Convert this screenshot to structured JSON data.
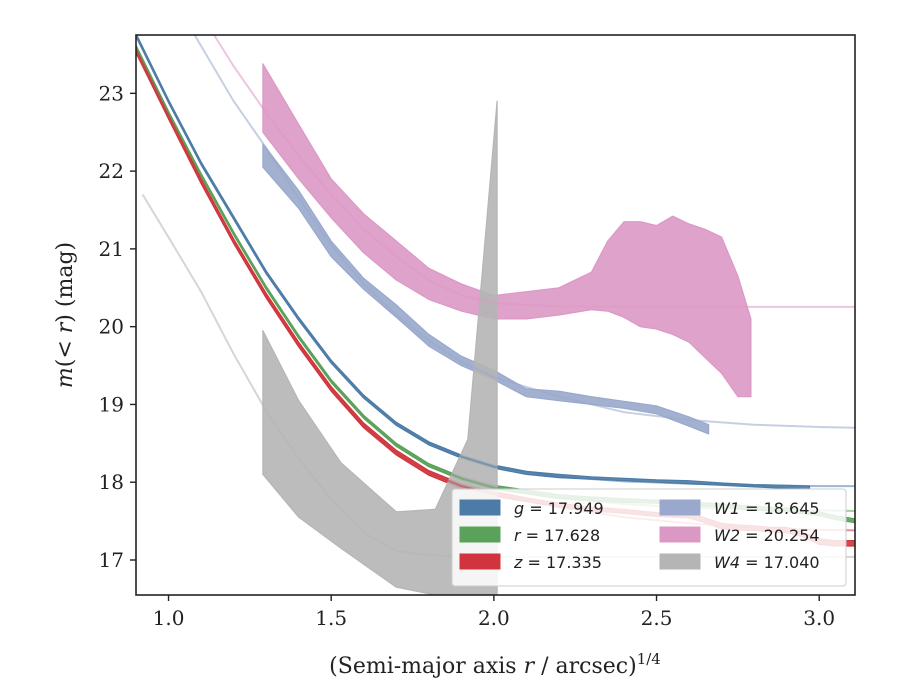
{
  "chart_data": {
    "type": "line",
    "title": "",
    "xlabel": "(Semi-major axis r / arcsec)^{1/4}",
    "xlabel_parts": {
      "prefix": "(Semi-major axis ",
      "var": "r",
      "middle": " / arcsec)",
      "sup": "1/4"
    },
    "ylabel": "m(< r) (mag)",
    "ylabel_parts": {
      "m": "m",
      "open": "(",
      "lt": "< ",
      "r": "r",
      "close": ")",
      "unit": " (mag)"
    },
    "xlim": [
      0.9,
      3.11
    ],
    "ylim": [
      23.75,
      16.55
    ],
    "y_inverted": true,
    "xticks": [
      1.0,
      1.5,
      2.0,
      2.5,
      3.0
    ],
    "xtick_labels": [
      "1.0",
      "1.5",
      "2.0",
      "2.5",
      "3.0"
    ],
    "yticks": [
      17,
      18,
      19,
      20,
      21,
      22,
      23
    ],
    "ytick_labels": [
      "17",
      "18",
      "19",
      "20",
      "21",
      "22",
      "23"
    ],
    "grid": false,
    "legend": {
      "position": "lower-right",
      "columns": 2,
      "entries": [
        {
          "band": "g",
          "value": "17.949",
          "color": "#4c7ba7"
        },
        {
          "band": "r",
          "value": "17.628",
          "color": "#5aa15a"
        },
        {
          "band": "z",
          "value": "17.335",
          "color": "#d0343c"
        },
        {
          "band": "W1",
          "value": "18.645",
          "color": "#99a8cc"
        },
        {
          "band": "W2",
          "value": "20.254",
          "color": "#dc98c5"
        },
        {
          "band": "W4",
          "value": "17.040",
          "color": "#b5b5b5"
        }
      ]
    },
    "series": [
      {
        "name": "g = 17.949",
        "color": "#4c7ba7",
        "model": {
          "x": [
            0.9,
            1.0,
            1.1,
            1.2,
            1.3,
            1.4,
            1.5,
            1.6,
            1.7,
            1.8,
            1.9,
            2.0,
            2.2,
            2.4,
            2.6,
            2.8,
            3.0,
            3.11
          ],
          "y": [
            23.75,
            22.9,
            22.1,
            21.4,
            20.7,
            20.1,
            19.55,
            19.1,
            18.75,
            18.5,
            18.33,
            18.2,
            18.07,
            18.01,
            17.98,
            17.96,
            17.95,
            17.95
          ]
        },
        "data_x": [
          0.9,
          1.0,
          1.1,
          1.2,
          1.3,
          1.4,
          1.5,
          1.6,
          1.7,
          1.8,
          1.9,
          2.0,
          2.1,
          2.2,
          2.3,
          2.4,
          2.5,
          2.6,
          2.7,
          2.8,
          2.9,
          2.97
        ],
        "data_lo": [
          23.73,
          22.88,
          22.08,
          21.38,
          20.68,
          20.08,
          19.53,
          19.08,
          18.73,
          18.48,
          18.31,
          18.18,
          18.1,
          18.06,
          18.04,
          18.02,
          18.0,
          17.98,
          17.96,
          17.94,
          17.92,
          17.91
        ],
        "data_hi": [
          23.77,
          22.92,
          22.12,
          21.42,
          20.72,
          20.12,
          19.57,
          19.12,
          18.77,
          18.52,
          18.35,
          18.22,
          18.14,
          18.1,
          18.07,
          18.05,
          18.03,
          18.02,
          17.99,
          17.97,
          17.96,
          17.95
        ]
      },
      {
        "name": "r = 17.628",
        "color": "#5aa15a",
        "model": {
          "x": [
            0.9,
            1.0,
            1.1,
            1.2,
            1.3,
            1.4,
            1.5,
            1.6,
            1.7,
            1.8,
            1.9,
            2.0,
            2.2,
            2.4,
            2.6,
            2.8,
            3.0,
            3.11
          ],
          "y": [
            23.6,
            22.75,
            21.95,
            21.2,
            20.5,
            19.87,
            19.3,
            18.84,
            18.48,
            18.22,
            18.05,
            17.93,
            17.8,
            17.72,
            17.67,
            17.65,
            17.64,
            17.63
          ]
        },
        "data_x": [
          0.9,
          1.0,
          1.1,
          1.2,
          1.3,
          1.4,
          1.5,
          1.6,
          1.7,
          1.8,
          1.9,
          2.0,
          2.1,
          2.2,
          2.3,
          2.4,
          2.5,
          2.6,
          2.7,
          2.8,
          2.9,
          3.0,
          3.05,
          3.11
        ],
        "data_lo": [
          23.58,
          22.73,
          21.93,
          21.18,
          20.48,
          19.85,
          19.28,
          18.82,
          18.46,
          18.2,
          18.03,
          17.91,
          17.85,
          17.79,
          17.76,
          17.74,
          17.73,
          17.7,
          17.68,
          17.64,
          17.62,
          17.57,
          17.52,
          17.48
        ],
        "data_hi": [
          23.62,
          22.77,
          21.97,
          21.22,
          20.52,
          19.89,
          19.32,
          18.86,
          18.5,
          18.24,
          18.07,
          17.96,
          17.9,
          17.84,
          17.81,
          17.79,
          17.77,
          17.75,
          17.72,
          17.69,
          17.67,
          17.62,
          17.57,
          17.53
        ]
      },
      {
        "name": "z = 17.335",
        "color": "#d0343c",
        "model": {
          "x": [
            0.9,
            1.0,
            1.1,
            1.2,
            1.3,
            1.4,
            1.5,
            1.6,
            1.7,
            1.8,
            1.9,
            2.0,
            2.2,
            2.4,
            2.6,
            2.8,
            3.0,
            3.11
          ],
          "y": [
            23.55,
            22.7,
            21.87,
            21.1,
            20.4,
            19.77,
            19.2,
            18.73,
            18.38,
            18.12,
            17.95,
            17.85,
            17.68,
            17.55,
            17.47,
            17.42,
            17.39,
            17.38
          ]
        },
        "data_x": [
          0.9,
          1.0,
          1.1,
          1.2,
          1.3,
          1.4,
          1.5,
          1.6,
          1.7,
          1.8,
          1.9,
          2.0,
          2.1,
          2.2,
          2.3,
          2.4,
          2.5,
          2.6,
          2.65,
          2.7,
          2.75,
          2.8,
          2.85,
          2.9,
          2.95,
          3.0,
          3.05,
          3.11
        ],
        "data_lo": [
          23.52,
          22.67,
          21.84,
          21.07,
          20.37,
          19.74,
          19.17,
          18.7,
          18.35,
          18.09,
          17.92,
          17.82,
          17.75,
          17.68,
          17.63,
          17.6,
          17.56,
          17.54,
          17.48,
          17.4,
          17.38,
          17.38,
          17.36,
          17.35,
          17.3,
          17.2,
          17.18,
          17.18
        ],
        "data_hi": [
          23.58,
          22.73,
          21.9,
          21.13,
          20.43,
          19.8,
          19.23,
          18.76,
          18.41,
          18.15,
          17.98,
          17.88,
          17.8,
          17.73,
          17.68,
          17.65,
          17.61,
          17.6,
          17.54,
          17.47,
          17.45,
          17.44,
          17.42,
          17.42,
          17.36,
          17.27,
          17.25,
          17.25
        ]
      },
      {
        "name": "W1 = 18.645",
        "color": "#99a8cc",
        "model": {
          "x": [
            1.08,
            1.2,
            1.3,
            1.4,
            1.5,
            1.6,
            1.7,
            1.8,
            1.9,
            2.0,
            2.2,
            2.4,
            2.6,
            2.8,
            3.0,
            3.11
          ],
          "y": [
            23.75,
            22.9,
            22.3,
            21.65,
            21.05,
            20.55,
            20.15,
            19.82,
            19.55,
            19.35,
            19.1,
            18.9,
            18.8,
            18.74,
            18.71,
            18.7
          ]
        },
        "data_x": [
          1.29,
          1.4,
          1.5,
          1.6,
          1.7,
          1.8,
          1.9,
          2.0,
          2.1,
          2.2,
          2.3,
          2.4,
          2.5,
          2.6,
          2.66
        ],
        "data_lo": [
          22.05,
          21.52,
          20.9,
          20.48,
          20.12,
          19.75,
          19.5,
          19.32,
          19.1,
          19.05,
          19.0,
          18.95,
          18.88,
          18.72,
          18.62
        ],
        "data_hi": [
          22.35,
          21.75,
          21.1,
          20.62,
          20.28,
          19.9,
          19.62,
          19.44,
          19.2,
          19.17,
          19.1,
          19.04,
          18.98,
          18.84,
          18.74
        ]
      },
      {
        "name": "W2 = 20.254",
        "color": "#dc98c5",
        "model": {
          "x": [
            1.14,
            1.2,
            1.3,
            1.4,
            1.5,
            1.6,
            1.7,
            1.8,
            1.9,
            2.0,
            2.2,
            2.4,
            2.6,
            2.8,
            3.0,
            3.11
          ],
          "y": [
            23.75,
            23.35,
            22.75,
            22.2,
            21.7,
            21.25,
            20.9,
            20.6,
            20.4,
            20.3,
            20.26,
            20.255,
            20.254,
            20.254,
            20.254,
            20.254
          ]
        },
        "data_x": [
          1.29,
          1.4,
          1.5,
          1.6,
          1.7,
          1.8,
          1.9,
          2.0,
          2.1,
          2.2,
          2.3,
          2.35,
          2.4,
          2.45,
          2.5,
          2.55,
          2.6,
          2.65,
          2.7,
          2.75,
          2.79
        ],
        "data_lo": [
          22.5,
          21.9,
          21.4,
          20.95,
          20.6,
          20.35,
          20.2,
          20.1,
          20.1,
          20.15,
          20.22,
          20.2,
          20.12,
          20.0,
          19.97,
          19.9,
          19.8,
          19.6,
          19.4,
          19.1,
          19.1
        ],
        "data_hi": [
          23.38,
          22.6,
          21.9,
          21.45,
          21.1,
          20.75,
          20.55,
          20.4,
          20.45,
          20.5,
          20.7,
          21.1,
          21.35,
          21.35,
          21.3,
          21.42,
          21.32,
          21.25,
          21.15,
          20.65,
          20.1
        ]
      },
      {
        "name": "W4 = 17.040",
        "color": "#b5b5b5",
        "model": {
          "x": [
            0.92,
            1.0,
            1.1,
            1.2,
            1.3,
            1.4,
            1.5,
            1.6,
            1.7,
            1.8,
            1.9,
            2.0,
            2.2,
            2.4,
            2.6,
            2.8,
            3.0,
            3.11
          ],
          "y": [
            21.7,
            21.15,
            20.45,
            19.65,
            18.92,
            18.3,
            17.78,
            17.35,
            17.12,
            17.06,
            17.045,
            17.04,
            17.04,
            17.04,
            17.04,
            17.04,
            17.04,
            17.04
          ]
        },
        "data_x": [
          1.29,
          1.4,
          1.53,
          1.7,
          1.82,
          1.92,
          2.01
        ],
        "data_lo": [
          18.1,
          17.55,
          17.15,
          16.65,
          16.55,
          16.55,
          16.55
        ],
        "data_hi": [
          19.95,
          19.05,
          18.25,
          17.62,
          17.65,
          18.55,
          22.9
        ]
      }
    ]
  }
}
